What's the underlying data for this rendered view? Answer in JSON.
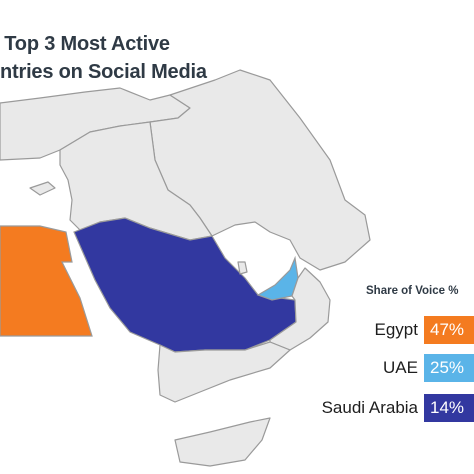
{
  "title": {
    "line1": "e Top 3 Most Active",
    "line2": "untries on Social Media"
  },
  "legend": {
    "title": "Share of Voice %",
    "items": [
      {
        "country": "Egypt",
        "value": "47%",
        "color": "#f47b20"
      },
      {
        "country": "UAE",
        "value": "25%",
        "color": "#5ab4e8"
      },
      {
        "country": "Saudi Arabia",
        "value": "14%",
        "color": "#3238a0"
      }
    ]
  },
  "colors": {
    "land": "#e9e9e9",
    "border": "#9a9a9a",
    "water": "#ffffff"
  }
}
